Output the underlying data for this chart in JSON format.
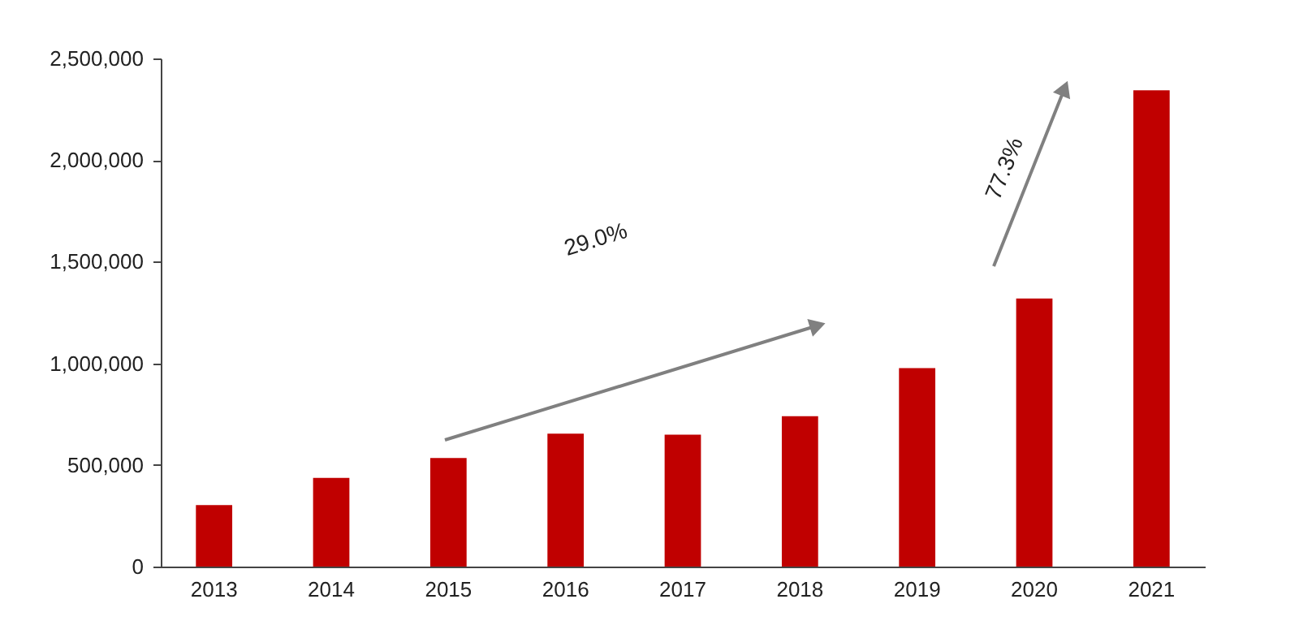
{
  "chart_data": {
    "type": "bar",
    "categories": [
      "2013",
      "2014",
      "2015",
      "2016",
      "2017",
      "2018",
      "2019",
      "2020",
      "2021"
    ],
    "values": [
      303000,
      436000,
      534000,
      654000,
      649000,
      740000,
      976000,
      1319000,
      2343000
    ],
    "color": "#c00000",
    "ylim": [
      0,
      2500000
    ],
    "yticks": [
      0,
      {
        "value": 500000,
        "label": "500,000"
      },
      {
        "value": 1000000,
        "label": "1,000,000"
      },
      {
        "value": 1500000,
        "label": "1,500,000"
      },
      {
        "value": 2000000,
        "label": "2,000,000"
      },
      {
        "value": 2500000,
        "label": "2,500,000"
      }
    ],
    "grid": false,
    "annotations": [
      "29.0%",
      "77.3%"
    ]
  }
}
